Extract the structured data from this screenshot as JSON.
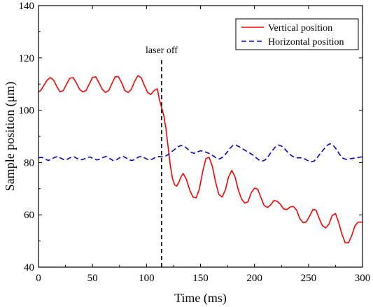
{
  "chart_data": {
    "type": "line",
    "xlabel": "Time (ms)",
    "ylabel": "Sample position (μm)",
    "xlim": [
      0,
      300
    ],
    "ylim": [
      40,
      140
    ],
    "xticks": [
      0,
      50,
      100,
      150,
      200,
      250,
      300
    ],
    "yticks": [
      40,
      60,
      80,
      100,
      120,
      140
    ],
    "grid": false,
    "legend_position": "top-right",
    "annotations": [
      {
        "text": "laser off",
        "x": 114,
        "style": "dashed-vertical-line",
        "color": "#000000"
      }
    ],
    "series": [
      {
        "name": "Vertical position",
        "color": "#ff0000",
        "line_style": "solid",
        "x": [
          0,
          2,
          5,
          8,
          11,
          14,
          17,
          20,
          23,
          26,
          29,
          32,
          35,
          38,
          41,
          44,
          47,
          50,
          53,
          56,
          59,
          62,
          65,
          68,
          71,
          74,
          77,
          80,
          83,
          86,
          89,
          92,
          95,
          98,
          101,
          104,
          107,
          110,
          112,
          114,
          116,
          118,
          120,
          122,
          124,
          126,
          128,
          130,
          132,
          134,
          137,
          140,
          143,
          146,
          149,
          152,
          155,
          158,
          161,
          164,
          167,
          170,
          173,
          176,
          179,
          182,
          185,
          188,
          191,
          194,
          197,
          200,
          203,
          206,
          209,
          212,
          215,
          218,
          221,
          224,
          227,
          230,
          233,
          236,
          239,
          242,
          245,
          248,
          251,
          254,
          257,
          260,
          263,
          266,
          269,
          272,
          275,
          278,
          281,
          284,
          287,
          290,
          293,
          296,
          300
        ],
        "values": [
          107,
          107.5,
          109.5,
          111.5,
          112.5,
          111.5,
          109,
          107,
          107.5,
          110,
          112.2,
          112.5,
          110.5,
          108,
          107,
          107.5,
          110,
          112.5,
          112.8,
          110.5,
          108,
          106.8,
          107.5,
          110.2,
          112.8,
          112.8,
          110.5,
          107.5,
          106.8,
          108,
          111,
          113.2,
          112.5,
          109.5,
          106.8,
          106,
          107.5,
          108.2,
          104,
          101,
          98,
          93,
          86,
          79,
          74,
          71.5,
          71,
          72.5,
          74.5,
          75.8,
          73.5,
          69.5,
          66.8,
          66.5,
          70,
          76.5,
          81.5,
          82,
          78.5,
          72.5,
          67.8,
          66.8,
          69.5,
          74.5,
          77,
          74.5,
          69.5,
          66,
          64.5,
          65,
          68.5,
          70.2,
          69.8,
          66.5,
          63.5,
          62.8,
          63.8,
          65.5,
          65.2,
          64,
          62.2,
          62,
          63,
          63.2,
          61.8,
          58.5,
          57,
          57.3,
          59.5,
          62,
          61.8,
          58.5,
          55.8,
          55,
          56.5,
          59.8,
          60.5,
          57,
          52.5,
          49.3,
          49.3,
          52,
          55.8,
          57.2,
          57.2
        ]
      },
      {
        "name": "Horizontal position",
        "color": "#0000cc",
        "line_style": "dashed",
        "x": [
          0,
          3,
          6,
          9,
          12,
          15,
          18,
          21,
          24,
          27,
          30,
          33,
          36,
          39,
          42,
          45,
          48,
          51,
          54,
          57,
          60,
          63,
          66,
          69,
          72,
          75,
          78,
          81,
          84,
          87,
          90,
          93,
          96,
          99,
          102,
          105,
          108,
          111,
          114,
          117,
          120,
          123,
          126,
          129,
          132,
          135,
          138,
          141,
          144,
          147,
          150,
          153,
          156,
          159,
          162,
          165,
          168,
          171,
          174,
          177,
          180,
          183,
          186,
          189,
          192,
          195,
          198,
          201,
          204,
          207,
          210,
          213,
          216,
          219,
          222,
          225,
          228,
          231,
          234,
          237,
          240,
          243,
          246,
          249,
          252,
          255,
          258,
          261,
          264,
          267,
          270,
          273,
          276,
          279,
          282,
          285,
          288,
          291,
          294,
          297,
          300
        ],
        "values": [
          81.8,
          82,
          81.3,
          80.8,
          81.2,
          82,
          82.3,
          81.6,
          81,
          81.3,
          82,
          82.2,
          81.5,
          81,
          81.3,
          82,
          82.1,
          81.4,
          81,
          81.3,
          82,
          82.3,
          81.5,
          80.8,
          81,
          81.8,
          82.4,
          81.8,
          81,
          80.8,
          81.4,
          82.2,
          82.3,
          81.6,
          81,
          81.2,
          81.9,
          82.3,
          82.2,
          82.3,
          83,
          84,
          85,
          86,
          86.5,
          86.2,
          85.2,
          84,
          83.5,
          84,
          84.5,
          84.3,
          83.8,
          83.3,
          82.5,
          81.6,
          81.4,
          82.2,
          83.6,
          85.3,
          86.5,
          86.6,
          86,
          85.2,
          84.5,
          83.8,
          83,
          82,
          81,
          80.5,
          81,
          82.5,
          84.3,
          85.8,
          86.7,
          86.3,
          85.2,
          83.8,
          82.7,
          82,
          81.8,
          81.8,
          81.5,
          80.8,
          80.2,
          80.5,
          81.8,
          83.5,
          85,
          86.5,
          87.2,
          86.5,
          85,
          83,
          81.6,
          81.2,
          81.4,
          81.6,
          81.8,
          82,
          82.2
        ]
      }
    ]
  }
}
